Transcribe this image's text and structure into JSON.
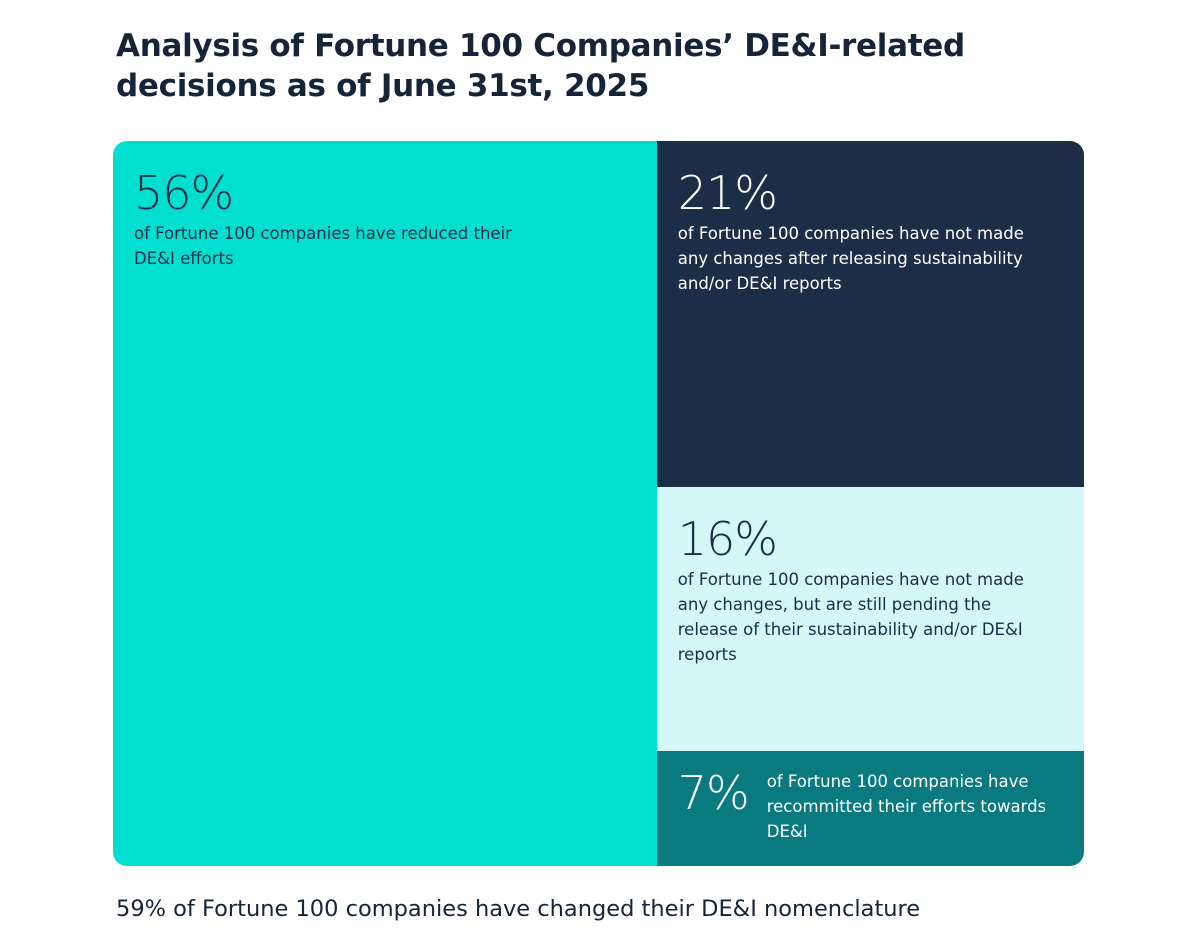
{
  "chart_data": {
    "type": "treemap",
    "title": "Analysis of Fortune 100 Companies’ DE&I-related decisions as of June 31st, 2025",
    "values": [
      56,
      21,
      16,
      7
    ],
    "value_labels": [
      "56%",
      "21%",
      "16%",
      "7%"
    ],
    "categories": [
      "of Fortune 100 companies have reduced their DE&I efforts",
      "of Fortune 100 companies have not made any changes after releasing sustainability and/or DE&I reports",
      "of Fortune 100 companies have not made any changes, but are still pending the release of their sustainability and/or DE&I reports",
      "of Fortune 100 companies have recommitted their efforts towards DE&I"
    ],
    "colors": [
      "#00dfd0",
      "#1b2d47",
      "#d4f7f8",
      "#087a80"
    ],
    "label_colors": [
      "#1b2d47",
      "#ffffff",
      "#1b2d47",
      "#ffffff"
    ],
    "footnote": "59% of Fortune 100 companies have changed their DE&I nomenclature"
  }
}
